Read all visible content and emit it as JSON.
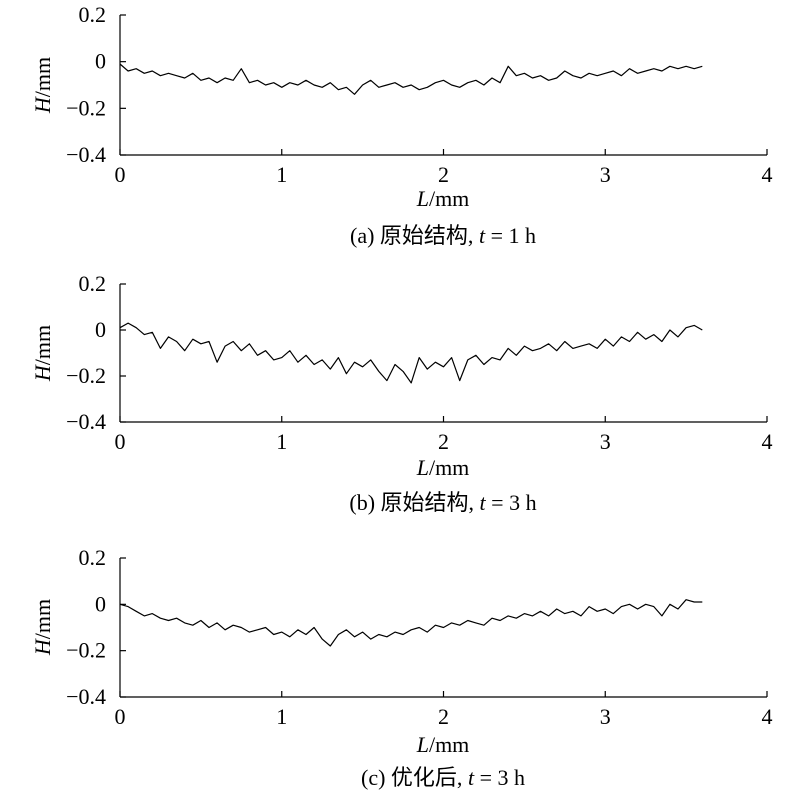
{
  "chart_data": [
    {
      "type": "line",
      "caption": {
        "prefix": "(a) 原始结构, ",
        "var": "t",
        "suffix": " = 1 h"
      },
      "xlabel": {
        "var": "L",
        "unit": "/mm"
      },
      "ylabel": {
        "var": "H",
        "unit": "/mm"
      },
      "xlim": [
        0,
        4
      ],
      "ylim": [
        -0.4,
        0.2
      ],
      "xticks": [
        0,
        1,
        2,
        3,
        4
      ],
      "yticks": [
        -0.4,
        -0.2,
        0,
        0.2
      ],
      "xtick_labels": [
        "0",
        "1",
        "2",
        "3",
        "4"
      ],
      "ytick_labels": [
        "−0.4",
        "−0.2",
        "0",
        "0.2"
      ],
      "grid": false,
      "series": [
        {
          "x": [
            0,
            0.05,
            0.1,
            0.15,
            0.2,
            0.25,
            0.3,
            0.35,
            0.4,
            0.45,
            0.5,
            0.55,
            0.6,
            0.65,
            0.7,
            0.75,
            0.8,
            0.85,
            0.9,
            0.95,
            1.0,
            1.05,
            1.1,
            1.15,
            1.2,
            1.25,
            1.3,
            1.35,
            1.4,
            1.45,
            1.5,
            1.55,
            1.6,
            1.65,
            1.7,
            1.75,
            1.8,
            1.85,
            1.9,
            1.95,
            2.0,
            2.05,
            2.1,
            2.15,
            2.2,
            2.25,
            2.3,
            2.35,
            2.4,
            2.45,
            2.5,
            2.55,
            2.6,
            2.65,
            2.7,
            2.75,
            2.8,
            2.85,
            2.9,
            2.95,
            3.0,
            3.05,
            3.1,
            3.15,
            3.2,
            3.25,
            3.3,
            3.35,
            3.4,
            3.45,
            3.5,
            3.55,
            3.6
          ],
          "y": [
            -0.01,
            -0.04,
            -0.03,
            -0.05,
            -0.04,
            -0.06,
            -0.05,
            -0.06,
            -0.07,
            -0.05,
            -0.08,
            -0.07,
            -0.09,
            -0.07,
            -0.08,
            -0.03,
            -0.09,
            -0.08,
            -0.1,
            -0.09,
            -0.11,
            -0.09,
            -0.1,
            -0.08,
            -0.1,
            -0.11,
            -0.09,
            -0.12,
            -0.11,
            -0.14,
            -0.1,
            -0.08,
            -0.11,
            -0.1,
            -0.09,
            -0.11,
            -0.1,
            -0.12,
            -0.11,
            -0.09,
            -0.08,
            -0.1,
            -0.11,
            -0.09,
            -0.08,
            -0.1,
            -0.07,
            -0.09,
            -0.02,
            -0.06,
            -0.05,
            -0.07,
            -0.06,
            -0.08,
            -0.07,
            -0.04,
            -0.06,
            -0.07,
            -0.05,
            -0.06,
            -0.05,
            -0.04,
            -0.06,
            -0.03,
            -0.05,
            -0.04,
            -0.03,
            -0.04,
            -0.02,
            -0.03,
            -0.02,
            -0.03,
            -0.02
          ]
        }
      ]
    },
    {
      "type": "line",
      "caption": {
        "prefix": "(b) 原始结构, ",
        "var": "t",
        "suffix": " = 3 h"
      },
      "xlabel": {
        "var": "L",
        "unit": "/mm"
      },
      "ylabel": {
        "var": "H",
        "unit": "/mm"
      },
      "xlim": [
        0,
        4
      ],
      "ylim": [
        -0.4,
        0.2
      ],
      "xticks": [
        0,
        1,
        2,
        3,
        4
      ],
      "yticks": [
        -0.4,
        -0.2,
        0,
        0.2
      ],
      "xtick_labels": [
        "0",
        "1",
        "2",
        "3",
        "4"
      ],
      "ytick_labels": [
        "−0.4",
        "−0.2",
        "0",
        "0.2"
      ],
      "grid": false,
      "series": [
        {
          "x": [
            0,
            0.05,
            0.1,
            0.15,
            0.2,
            0.25,
            0.3,
            0.35,
            0.4,
            0.45,
            0.5,
            0.55,
            0.6,
            0.65,
            0.7,
            0.75,
            0.8,
            0.85,
            0.9,
            0.95,
            1.0,
            1.05,
            1.1,
            1.15,
            1.2,
            1.25,
            1.3,
            1.35,
            1.4,
            1.45,
            1.5,
            1.55,
            1.6,
            1.65,
            1.7,
            1.75,
            1.8,
            1.85,
            1.9,
            1.95,
            2.0,
            2.05,
            2.1,
            2.15,
            2.2,
            2.25,
            2.3,
            2.35,
            2.4,
            2.45,
            2.5,
            2.55,
            2.6,
            2.65,
            2.7,
            2.75,
            2.8,
            2.85,
            2.9,
            2.95,
            3.0,
            3.05,
            3.1,
            3.15,
            3.2,
            3.25,
            3.3,
            3.35,
            3.4,
            3.45,
            3.5,
            3.55,
            3.6
          ],
          "y": [
            0.01,
            0.03,
            0.01,
            -0.02,
            -0.01,
            -0.08,
            -0.03,
            -0.05,
            -0.09,
            -0.04,
            -0.06,
            -0.05,
            -0.14,
            -0.07,
            -0.05,
            -0.09,
            -0.06,
            -0.11,
            -0.09,
            -0.13,
            -0.12,
            -0.09,
            -0.14,
            -0.11,
            -0.15,
            -0.13,
            -0.17,
            -0.12,
            -0.19,
            -0.14,
            -0.16,
            -0.13,
            -0.18,
            -0.22,
            -0.15,
            -0.18,
            -0.23,
            -0.12,
            -0.17,
            -0.14,
            -0.16,
            -0.12,
            -0.22,
            -0.13,
            -0.11,
            -0.15,
            -0.12,
            -0.13,
            -0.08,
            -0.11,
            -0.07,
            -0.09,
            -0.08,
            -0.06,
            -0.09,
            -0.05,
            -0.08,
            -0.07,
            -0.06,
            -0.08,
            -0.04,
            -0.07,
            -0.03,
            -0.05,
            -0.01,
            -0.04,
            -0.02,
            -0.05,
            0.0,
            -0.03,
            0.01,
            0.02,
            0.0
          ]
        }
      ]
    },
    {
      "type": "line",
      "caption": {
        "prefix": "(c) 优化后, ",
        "var": "t",
        "suffix": " = 3 h"
      },
      "xlabel": {
        "var": "L",
        "unit": "/mm"
      },
      "ylabel": {
        "var": "H",
        "unit": "/mm"
      },
      "xlim": [
        0,
        4
      ],
      "ylim": [
        -0.4,
        0.2
      ],
      "xticks": [
        0,
        1,
        2,
        3,
        4
      ],
      "yticks": [
        -0.4,
        -0.2,
        0,
        0.2
      ],
      "xtick_labels": [
        "0",
        "1",
        "2",
        "3",
        "4"
      ],
      "ytick_labels": [
        "−0.4",
        "−0.2",
        "0",
        "0.2"
      ],
      "grid": false,
      "series": [
        {
          "x": [
            0,
            0.05,
            0.1,
            0.15,
            0.2,
            0.25,
            0.3,
            0.35,
            0.4,
            0.45,
            0.5,
            0.55,
            0.6,
            0.65,
            0.7,
            0.75,
            0.8,
            0.85,
            0.9,
            0.95,
            1.0,
            1.05,
            1.1,
            1.15,
            1.2,
            1.25,
            1.3,
            1.35,
            1.4,
            1.45,
            1.5,
            1.55,
            1.6,
            1.65,
            1.7,
            1.75,
            1.8,
            1.85,
            1.9,
            1.95,
            2.0,
            2.05,
            2.1,
            2.15,
            2.2,
            2.25,
            2.3,
            2.35,
            2.4,
            2.45,
            2.5,
            2.55,
            2.6,
            2.65,
            2.7,
            2.75,
            2.8,
            2.85,
            2.9,
            2.95,
            3.0,
            3.05,
            3.1,
            3.15,
            3.2,
            3.25,
            3.3,
            3.35,
            3.4,
            3.45,
            3.5,
            3.55,
            3.6
          ],
          "y": [
            0.0,
            -0.01,
            -0.03,
            -0.05,
            -0.04,
            -0.06,
            -0.07,
            -0.06,
            -0.08,
            -0.09,
            -0.07,
            -0.1,
            -0.08,
            -0.11,
            -0.09,
            -0.1,
            -0.12,
            -0.11,
            -0.1,
            -0.13,
            -0.12,
            -0.14,
            -0.11,
            -0.13,
            -0.1,
            -0.15,
            -0.18,
            -0.13,
            -0.11,
            -0.14,
            -0.12,
            -0.15,
            -0.13,
            -0.14,
            -0.12,
            -0.13,
            -0.11,
            -0.1,
            -0.12,
            -0.09,
            -0.1,
            -0.08,
            -0.09,
            -0.07,
            -0.08,
            -0.09,
            -0.06,
            -0.07,
            -0.05,
            -0.06,
            -0.04,
            -0.05,
            -0.03,
            -0.05,
            -0.02,
            -0.04,
            -0.03,
            -0.05,
            -0.01,
            -0.03,
            -0.02,
            -0.04,
            -0.01,
            0.0,
            -0.02,
            0.0,
            -0.01,
            -0.05,
            0.0,
            -0.02,
            0.02,
            0.01,
            0.01
          ]
        }
      ]
    }
  ]
}
